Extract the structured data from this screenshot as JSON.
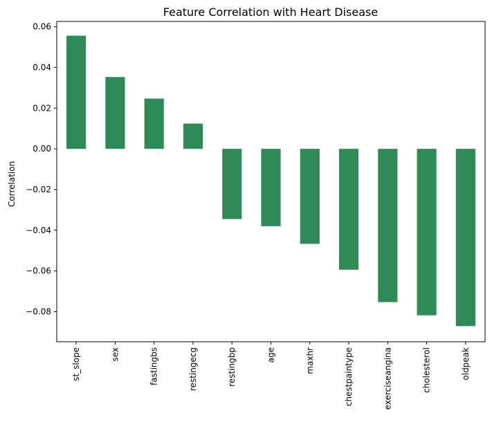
{
  "chart_data": {
    "type": "bar",
    "title": "Feature Correlation with Heart Disease",
    "xlabel": "",
    "ylabel": "Correlation",
    "categories": [
      "st_slope",
      "sex",
      "fastingbs",
      "restingecg",
      "restingbp",
      "age",
      "maxhr",
      "chestpaintype",
      "exerciseangina",
      "cholesterol",
      "oldpeak"
    ],
    "values": [
      0.0556,
      0.0353,
      0.0247,
      0.0124,
      -0.0345,
      -0.038,
      -0.0467,
      -0.0594,
      -0.0753,
      -0.0818,
      -0.0871
    ],
    "ylim": [
      -0.0948,
      0.0626
    ],
    "yticks": [
      0.06,
      0.04,
      0.02,
      0.0,
      -0.02,
      -0.04,
      -0.06,
      -0.08
    ],
    "ytick_labels": [
      "0.06",
      "0.04",
      "0.02",
      "0.00",
      "−0.02",
      "−0.04",
      "−0.06",
      "−0.08"
    ],
    "grid": false,
    "bar_color": "#2e8b57"
  }
}
